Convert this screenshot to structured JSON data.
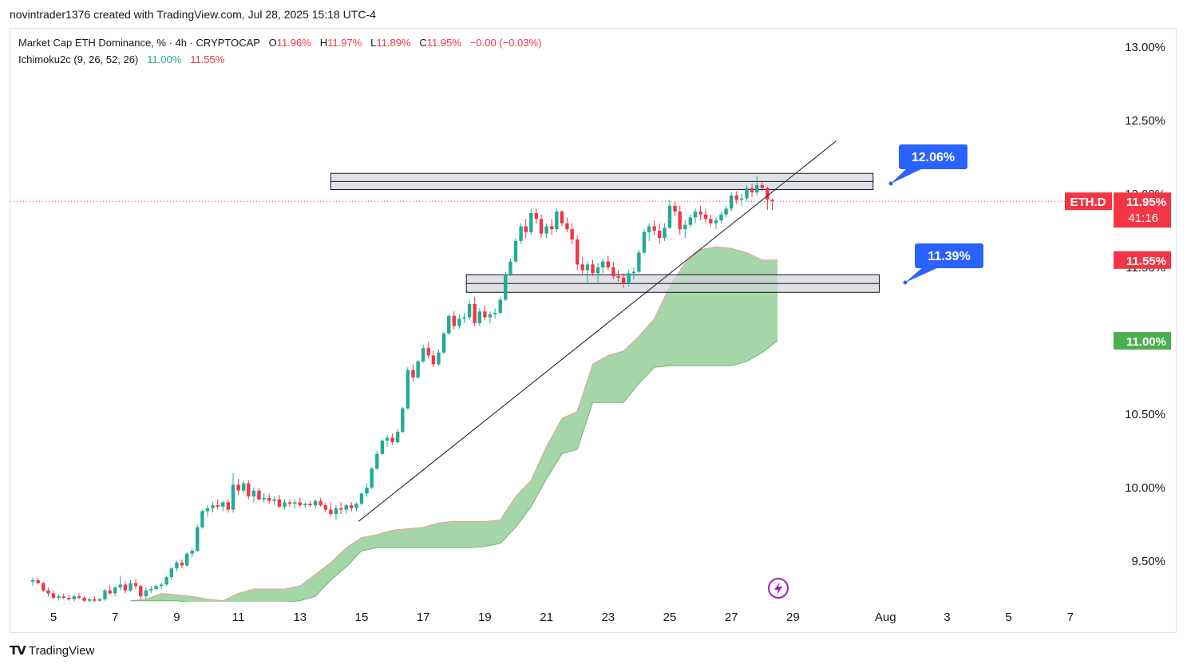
{
  "header": {
    "caption": "novintrader1376 created with TradingView.com, Jul 28, 2025 15:18 UTC-4"
  },
  "legend": {
    "symbol_line": "Market Cap ETH Dominance, % · 4h · CRYPTOCAP",
    "o_label": "O",
    "o_value": "11.96%",
    "h_label": "H",
    "h_value": "11.97%",
    "l_label": "L",
    "l_value": "11.89%",
    "c_label": "C",
    "c_value": "11.95%",
    "change": "−0.00 (−0.03%)",
    "indicator_name": "Ichimoku2c (9, 26, 52, 26)",
    "indicator_v1": "11.00%",
    "indicator_v2": "11.55%"
  },
  "footer": {
    "brand": "TradingView"
  },
  "colors": {
    "up": "#22ab94",
    "down": "#f23645",
    "cloud_fill": "#a5d6a7",
    "cloud_edge_red": "#ef9a9a",
    "callout": "#2962ff",
    "zone_fill": "#d1d4dc",
    "zone_border": "#131722",
    "price_tag_red": "#f23645",
    "price_tag_green": "#4caf50"
  },
  "chart_data": {
    "type": "candlestick",
    "symbol": "ETH.D",
    "interval": "4h",
    "y_axis": {
      "ticks": [
        "13.00%",
        "12.50%",
        "12.00%",
        "11.50%",
        "10.50%",
        "10.00%",
        "9.50%"
      ],
      "tick_values": [
        13.0,
        12.5,
        12.0,
        11.5,
        10.5,
        10.0,
        9.5
      ],
      "ylim": [
        9.2,
        13.1
      ]
    },
    "x_axis": {
      "ticks": [
        "5",
        "7",
        "9",
        "11",
        "13",
        "15",
        "17",
        "19",
        "21",
        "23",
        "25",
        "27",
        "29",
        "Aug",
        "3",
        "5",
        "7"
      ],
      "tick_days": [
        5,
        7,
        9,
        11,
        13,
        15,
        17,
        19,
        21,
        23,
        25,
        27,
        29,
        32,
        34,
        36,
        38
      ],
      "xlim": [
        4.2,
        38.8
      ]
    },
    "price_labels": {
      "symbol_tag": "ETH.D",
      "last_price": "11.95%",
      "countdown": "41:16",
      "span_a": "11.55%",
      "span_b": "11.00%"
    },
    "callouts": [
      {
        "text": "12.06%",
        "value": 12.06
      },
      {
        "text": "11.39%",
        "value": 11.39
      }
    ],
    "zones": [
      {
        "from_day": 14.0,
        "to_day": 31.6,
        "low": 12.03,
        "high": 12.14
      },
      {
        "from_day": 18.4,
        "to_day": 31.8,
        "low": 11.33,
        "high": 11.45
      }
    ],
    "trendline": {
      "from": [
        14.9,
        9.77
      ],
      "to": [
        30.4,
        12.36
      ]
    },
    "current_price": 11.95,
    "candles": [
      [
        4.33,
        9.36,
        9.39,
        9.33,
        9.37
      ],
      [
        4.5,
        9.37,
        9.39,
        9.34,
        9.35
      ],
      [
        4.67,
        9.35,
        9.36,
        9.29,
        9.3
      ],
      [
        4.83,
        9.3,
        9.32,
        9.26,
        9.28
      ],
      [
        5.0,
        9.28,
        9.3,
        9.24,
        9.25
      ],
      [
        5.17,
        9.25,
        9.27,
        9.23,
        9.26
      ],
      [
        5.33,
        9.26,
        9.28,
        9.24,
        9.25
      ],
      [
        5.5,
        9.25,
        9.27,
        9.23,
        9.24
      ],
      [
        5.67,
        9.24,
        9.27,
        9.22,
        9.26
      ],
      [
        5.83,
        9.26,
        9.28,
        9.24,
        9.25
      ],
      [
        6.0,
        9.25,
        9.26,
        9.22,
        9.23
      ],
      [
        6.17,
        9.23,
        9.25,
        9.21,
        9.24
      ],
      [
        6.33,
        9.24,
        9.26,
        9.22,
        9.23
      ],
      [
        6.5,
        9.23,
        9.25,
        9.21,
        9.24
      ],
      [
        6.67,
        9.24,
        9.31,
        9.23,
        9.3
      ],
      [
        6.83,
        9.3,
        9.34,
        9.27,
        9.28
      ],
      [
        7.0,
        9.28,
        9.33,
        9.26,
        9.32
      ],
      [
        7.17,
        9.32,
        9.4,
        9.3,
        9.34
      ],
      [
        7.33,
        9.34,
        9.36,
        9.28,
        9.3
      ],
      [
        7.5,
        9.3,
        9.37,
        9.29,
        9.35
      ],
      [
        7.67,
        9.35,
        9.38,
        9.31,
        9.33
      ],
      [
        7.83,
        9.33,
        9.34,
        9.24,
        9.26
      ],
      [
        8.0,
        9.26,
        9.32,
        9.24,
        9.3
      ],
      [
        8.17,
        9.3,
        9.33,
        9.28,
        9.31
      ],
      [
        8.33,
        9.31,
        9.34,
        9.3,
        9.33
      ],
      [
        8.5,
        9.33,
        9.35,
        9.31,
        9.34
      ],
      [
        8.67,
        9.34,
        9.4,
        9.33,
        9.39
      ],
      [
        8.83,
        9.39,
        9.46,
        9.37,
        9.45
      ],
      [
        9.0,
        9.45,
        9.5,
        9.43,
        9.49
      ],
      [
        9.17,
        9.49,
        9.51,
        9.45,
        9.47
      ],
      [
        9.33,
        9.47,
        9.56,
        9.46,
        9.55
      ],
      [
        9.5,
        9.55,
        9.59,
        9.53,
        9.57
      ],
      [
        9.67,
        9.57,
        9.75,
        9.56,
        9.73
      ],
      [
        9.83,
        9.73,
        9.85,
        9.72,
        9.84
      ],
      [
        10.0,
        9.84,
        9.88,
        9.8,
        9.86
      ],
      [
        10.17,
        9.86,
        9.9,
        9.83,
        9.88
      ],
      [
        10.33,
        9.88,
        9.92,
        9.85,
        9.87
      ],
      [
        10.5,
        9.87,
        9.91,
        9.84,
        9.9
      ],
      [
        10.67,
        9.9,
        9.92,
        9.83,
        9.85
      ],
      [
        10.83,
        9.85,
        10.1,
        9.83,
        10.02
      ],
      [
        11.0,
        10.02,
        10.06,
        9.95,
        9.98
      ],
      [
        11.17,
        9.98,
        10.05,
        9.96,
        10.03
      ],
      [
        11.33,
        10.03,
        10.05,
        9.92,
        9.94
      ],
      [
        11.5,
        9.94,
        10.0,
        9.9,
        9.98
      ],
      [
        11.67,
        9.98,
        10.0,
        9.91,
        9.92
      ],
      [
        11.83,
        9.92,
        9.96,
        9.9,
        9.93
      ],
      [
        12.0,
        9.93,
        9.96,
        9.89,
        9.91
      ],
      [
        12.17,
        9.91,
        9.94,
        9.88,
        9.92
      ],
      [
        12.33,
        9.92,
        9.95,
        9.86,
        9.87
      ],
      [
        12.5,
        9.87,
        9.92,
        9.85,
        9.9
      ],
      [
        12.67,
        9.9,
        9.92,
        9.87,
        9.89
      ],
      [
        12.83,
        9.89,
        9.92,
        9.86,
        9.9
      ],
      [
        13.0,
        9.9,
        9.93,
        9.87,
        9.88
      ],
      [
        13.17,
        9.88,
        9.9,
        9.86,
        9.89
      ],
      [
        13.33,
        9.89,
        9.91,
        9.87,
        9.88
      ],
      [
        13.5,
        9.88,
        9.92,
        9.86,
        9.91
      ],
      [
        13.67,
        9.91,
        9.93,
        9.87,
        9.88
      ],
      [
        13.83,
        9.88,
        9.9,
        9.83,
        9.85
      ],
      [
        14.0,
        9.85,
        9.9,
        9.8,
        9.82
      ],
      [
        14.17,
        9.82,
        9.88,
        9.78,
        9.86
      ],
      [
        14.33,
        9.86,
        9.9,
        9.82,
        9.85
      ],
      [
        14.5,
        9.85,
        9.89,
        9.82,
        9.88
      ],
      [
        14.67,
        9.88,
        9.9,
        9.84,
        9.86
      ],
      [
        14.83,
        9.86,
        9.9,
        9.84,
        9.89
      ],
      [
        15.0,
        9.89,
        9.97,
        9.88,
        9.96
      ],
      [
        15.17,
        9.96,
        10.03,
        9.94,
        10.0
      ],
      [
        15.33,
        10.0,
        10.14,
        9.99,
        10.13
      ],
      [
        15.5,
        10.13,
        10.25,
        10.12,
        10.23
      ],
      [
        15.67,
        10.23,
        10.33,
        10.22,
        10.32
      ],
      [
        15.83,
        10.32,
        10.36,
        10.28,
        10.34
      ],
      [
        16.0,
        10.34,
        10.37,
        10.29,
        10.31
      ],
      [
        16.17,
        10.31,
        10.4,
        10.3,
        10.38
      ],
      [
        16.33,
        10.38,
        10.55,
        10.37,
        10.54
      ],
      [
        16.5,
        10.54,
        10.82,
        10.53,
        10.8
      ],
      [
        16.67,
        10.8,
        10.84,
        10.72,
        10.75
      ],
      [
        16.83,
        10.75,
        10.87,
        10.74,
        10.86
      ],
      [
        17.0,
        10.86,
        10.97,
        10.85,
        10.95
      ],
      [
        17.17,
        10.95,
        10.99,
        10.88,
        10.9
      ],
      [
        17.33,
        10.9,
        10.93,
        10.82,
        10.84
      ],
      [
        17.5,
        10.84,
        10.94,
        10.83,
        10.92
      ],
      [
        17.67,
        10.92,
        11.06,
        10.91,
        11.05
      ],
      [
        17.83,
        11.05,
        11.18,
        11.04,
        11.17
      ],
      [
        18.0,
        11.17,
        11.2,
        11.08,
        11.1
      ],
      [
        18.17,
        11.1,
        11.18,
        11.08,
        11.15
      ],
      [
        18.33,
        11.15,
        11.19,
        11.12,
        11.16
      ],
      [
        18.5,
        11.16,
        11.28,
        11.14,
        11.25
      ],
      [
        18.67,
        11.25,
        11.3,
        11.1,
        11.12
      ],
      [
        18.83,
        11.12,
        11.22,
        11.1,
        11.2
      ],
      [
        19.0,
        11.2,
        11.24,
        11.14,
        11.16
      ],
      [
        19.17,
        11.16,
        11.2,
        11.12,
        11.18
      ],
      [
        19.33,
        11.18,
        11.22,
        11.15,
        11.19
      ],
      [
        19.5,
        11.19,
        11.3,
        11.18,
        11.28
      ],
      [
        19.67,
        11.28,
        11.47,
        11.27,
        11.45
      ],
      [
        19.83,
        11.45,
        11.56,
        11.44,
        11.54
      ],
      [
        20.0,
        11.54,
        11.7,
        11.53,
        11.68
      ],
      [
        20.17,
        11.68,
        11.8,
        11.66,
        11.78
      ],
      [
        20.33,
        11.78,
        11.83,
        11.7,
        11.74
      ],
      [
        20.5,
        11.74,
        11.9,
        11.72,
        11.87
      ],
      [
        20.67,
        11.87,
        11.9,
        11.8,
        11.83
      ],
      [
        20.83,
        11.83,
        11.86,
        11.7,
        11.73
      ],
      [
        21.0,
        11.73,
        11.8,
        11.7,
        11.78
      ],
      [
        21.17,
        11.78,
        11.83,
        11.72,
        11.76
      ],
      [
        21.33,
        11.76,
        11.9,
        11.74,
        11.88
      ],
      [
        21.5,
        11.88,
        11.89,
        11.78,
        11.8
      ],
      [
        21.67,
        11.8,
        11.84,
        11.74,
        11.76
      ],
      [
        21.83,
        11.76,
        11.8,
        11.66,
        11.69
      ],
      [
        22.0,
        11.69,
        11.72,
        11.48,
        11.52
      ],
      [
        22.17,
        11.52,
        11.57,
        11.45,
        11.48
      ],
      [
        22.33,
        11.48,
        11.54,
        11.4,
        11.52
      ],
      [
        22.5,
        11.52,
        11.55,
        11.44,
        11.46
      ],
      [
        22.67,
        11.46,
        11.53,
        11.4,
        11.5
      ],
      [
        22.83,
        11.5,
        11.56,
        11.46,
        11.54
      ],
      [
        23.0,
        11.54,
        11.58,
        11.48,
        11.5
      ],
      [
        23.17,
        11.5,
        11.54,
        11.42,
        11.44
      ],
      [
        23.33,
        11.44,
        11.48,
        11.4,
        11.43
      ],
      [
        23.5,
        11.43,
        11.46,
        11.36,
        11.39
      ],
      [
        23.67,
        11.39,
        11.48,
        11.37,
        11.46
      ],
      [
        23.83,
        11.46,
        11.5,
        11.42,
        11.47
      ],
      [
        24.0,
        11.47,
        11.62,
        11.46,
        11.6
      ],
      [
        24.17,
        11.6,
        11.76,
        11.59,
        11.74
      ],
      [
        24.33,
        11.74,
        11.8,
        11.68,
        11.78
      ],
      [
        24.5,
        11.78,
        11.82,
        11.72,
        11.75
      ],
      [
        24.67,
        11.75,
        11.8,
        11.66,
        11.7
      ],
      [
        24.83,
        11.7,
        11.8,
        11.68,
        11.77
      ],
      [
        25.0,
        11.77,
        11.96,
        11.76,
        11.92
      ],
      [
        25.17,
        11.92,
        11.95,
        11.85,
        11.88
      ],
      [
        25.33,
        11.88,
        11.92,
        11.72,
        11.76
      ],
      [
        25.5,
        11.76,
        11.82,
        11.7,
        11.79
      ],
      [
        25.67,
        11.79,
        11.86,
        11.77,
        11.84
      ],
      [
        25.83,
        11.84,
        11.9,
        11.8,
        11.88
      ],
      [
        26.0,
        11.88,
        11.92,
        11.82,
        11.86
      ],
      [
        26.17,
        11.86,
        11.9,
        11.8,
        11.83
      ],
      [
        26.33,
        11.83,
        11.86,
        11.78,
        11.8
      ],
      [
        26.5,
        11.8,
        11.84,
        11.76,
        11.82
      ],
      [
        26.67,
        11.82,
        11.88,
        11.8,
        11.86
      ],
      [
        26.83,
        11.86,
        11.92,
        11.84,
        11.9
      ],
      [
        27.0,
        11.9,
        12.01,
        11.88,
        11.99
      ],
      [
        27.17,
        11.99,
        12.02,
        11.93,
        11.96
      ],
      [
        27.33,
        11.96,
        12.0,
        11.92,
        11.97
      ],
      [
        27.5,
        11.97,
        12.06,
        11.95,
        12.04
      ],
      [
        27.67,
        12.04,
        12.07,
        11.98,
        12.01
      ],
      [
        27.83,
        12.01,
        12.12,
        11.99,
        12.06
      ],
      [
        28.0,
        12.06,
        12.08,
        12.02,
        12.04
      ],
      [
        28.17,
        12.04,
        12.05,
        11.89,
        11.96
      ],
      [
        28.33,
        11.96,
        11.97,
        11.89,
        11.95
      ]
    ],
    "cloud": {
      "span_a": [
        [
          7.5,
          9.23
        ],
        [
          8.0,
          9.24
        ],
        [
          8.5,
          9.28
        ],
        [
          9.0,
          9.27
        ],
        [
          9.5,
          9.26
        ],
        [
          10.0,
          9.24
        ],
        [
          10.5,
          9.23
        ],
        [
          11.0,
          9.28
        ],
        [
          11.5,
          9.31
        ],
        [
          12.0,
          9.31
        ],
        [
          12.5,
          9.31
        ],
        [
          13.0,
          9.33
        ],
        [
          13.5,
          9.41
        ],
        [
          14.0,
          9.49
        ],
        [
          14.5,
          9.59
        ],
        [
          15.0,
          9.66
        ],
        [
          15.5,
          9.68
        ],
        [
          16.0,
          9.71
        ],
        [
          16.5,
          9.72
        ],
        [
          17.0,
          9.73
        ],
        [
          17.5,
          9.76
        ],
        [
          18.0,
          9.77
        ],
        [
          18.5,
          9.77
        ],
        [
          19.0,
          9.77
        ],
        [
          19.5,
          9.78
        ],
        [
          20.0,
          9.94
        ],
        [
          20.5,
          10.05
        ],
        [
          21.0,
          10.28
        ],
        [
          21.5,
          10.47
        ],
        [
          22.0,
          10.52
        ],
        [
          22.5,
          10.84
        ],
        [
          23.0,
          10.9
        ],
        [
          23.5,
          10.93
        ],
        [
          24.0,
          11.03
        ],
        [
          24.5,
          11.15
        ],
        [
          25.0,
          11.37
        ],
        [
          25.5,
          11.53
        ],
        [
          26.0,
          11.62
        ],
        [
          26.5,
          11.64
        ],
        [
          27.0,
          11.63
        ],
        [
          27.5,
          11.6
        ],
        [
          28.0,
          11.55
        ],
        [
          28.5,
          11.55
        ]
      ],
      "span_b": [
        [
          7.5,
          9.23
        ],
        [
          8.0,
          9.23
        ],
        [
          8.5,
          9.23
        ],
        [
          9.0,
          9.23
        ],
        [
          9.5,
          9.22
        ],
        [
          10.0,
          9.22
        ],
        [
          10.5,
          9.22
        ],
        [
          11.0,
          9.22
        ],
        [
          11.5,
          9.22
        ],
        [
          12.0,
          9.22
        ],
        [
          12.5,
          9.22
        ],
        [
          13.0,
          9.23
        ],
        [
          13.5,
          9.26
        ],
        [
          14.0,
          9.37
        ],
        [
          14.5,
          9.46
        ],
        [
          15.0,
          9.57
        ],
        [
          15.5,
          9.59
        ],
        [
          16.0,
          9.59
        ],
        [
          16.5,
          9.59
        ],
        [
          17.0,
          9.59
        ],
        [
          17.5,
          9.59
        ],
        [
          18.0,
          9.59
        ],
        [
          18.5,
          9.59
        ],
        [
          19.0,
          9.6
        ],
        [
          19.5,
          9.62
        ],
        [
          20.0,
          9.73
        ],
        [
          20.5,
          9.87
        ],
        [
          21.0,
          10.06
        ],
        [
          21.5,
          10.23
        ],
        [
          22.0,
          10.26
        ],
        [
          22.5,
          10.58
        ],
        [
          23.0,
          10.58
        ],
        [
          23.5,
          10.58
        ],
        [
          24.0,
          10.71
        ],
        [
          24.5,
          10.82
        ],
        [
          25.0,
          10.83
        ],
        [
          25.5,
          10.83
        ],
        [
          26.0,
          10.83
        ],
        [
          26.5,
          10.83
        ],
        [
          27.0,
          10.83
        ],
        [
          27.5,
          10.86
        ],
        [
          28.0,
          10.92
        ],
        [
          28.5,
          11.0
        ]
      ]
    }
  }
}
